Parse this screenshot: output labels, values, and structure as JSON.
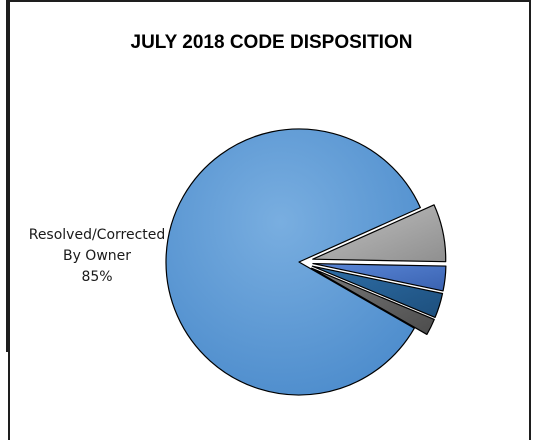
{
  "chart_data": {
    "type": "pie",
    "title": "JULY 2018 CODE DISPOSITION",
    "slices": [
      {
        "label": "Resolved/Corrected By Owner",
        "label_lines": [
          "Resolved/Corrected",
          "By Owner",
          "85%"
        ],
        "percent": 85,
        "color": "#5b9bd5",
        "exploded": false
      },
      {
        "label": "",
        "percent": 7,
        "color": "#a5a5a5",
        "exploded": true
      },
      {
        "label": "",
        "percent": 3,
        "color": "#4472c4",
        "exploded": true
      },
      {
        "label": "",
        "percent": 3,
        "color": "#255e91",
        "exploded": true
      },
      {
        "label": "",
        "percent": 2,
        "color": "#636363",
        "exploded": true
      }
    ]
  }
}
